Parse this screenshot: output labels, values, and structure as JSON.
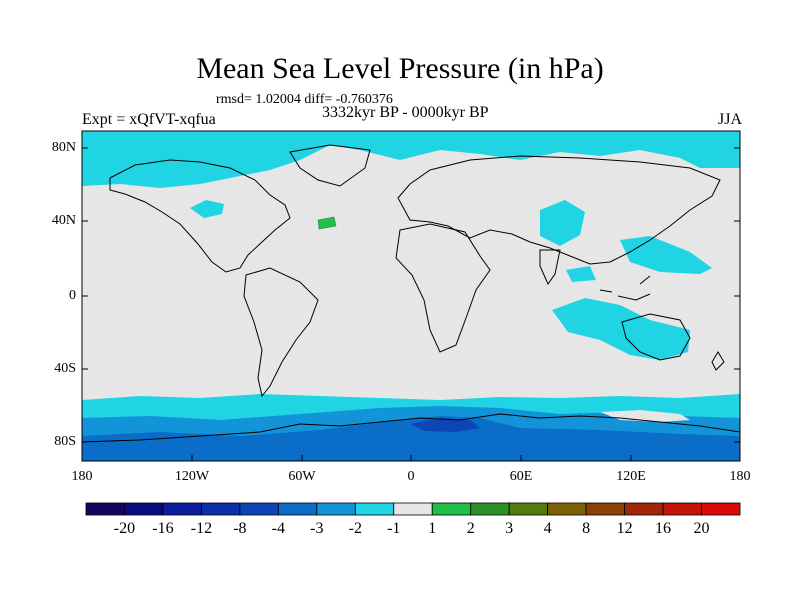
{
  "title": "Mean Sea Level Pressure (in hPa)",
  "stats": "rmsd= 1.02004  diff= -0.760376",
  "experiment": "Expt = xQfVT-xqfua",
  "period": "3332kyr BP - 0000kyr BP",
  "season": "JJA",
  "y_axis": {
    "ticks": [
      "80N",
      "40N",
      "0",
      "40S",
      "80S"
    ]
  },
  "x_axis": {
    "ticks": [
      "180",
      "120W",
      "60W",
      "0",
      "60E",
      "120E",
      "180"
    ]
  },
  "colorbar": {
    "labels": [
      "-20",
      "-16",
      "-12",
      "-8",
      "-4",
      "-3",
      "-2",
      "-1",
      "1",
      "2",
      "3",
      "4",
      "8",
      "12",
      "16",
      "20"
    ],
    "colors": [
      "#160460",
      "#0a0a82",
      "#0b1d9e",
      "#0a2fa6",
      "#0b45b8",
      "#0a6dc8",
      "#1494d8",
      "#20d4e4",
      "#e6e6e6",
      "#1fbf4a",
      "#2e8f2a",
      "#557a10",
      "#7d6205",
      "#8f4007",
      "#a3250a",
      "#c1150a",
      "#d80a0a"
    ]
  },
  "colors": {
    "neutral": "#e6e6e6",
    "cyan": "#20d4e4",
    "blue1": "#1494d8",
    "blue2": "#0a6dc8",
    "blue3": "#0b45b8",
    "green": "#1fbf4a"
  }
}
